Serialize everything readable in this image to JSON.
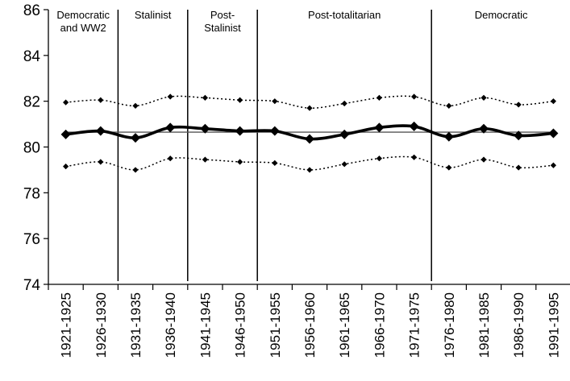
{
  "chart_data": {
    "type": "line",
    "title": "",
    "xlabel": "",
    "ylabel": "",
    "ylim": [
      74,
      86
    ],
    "y_ticks": [
      74,
      76,
      78,
      80,
      82,
      84,
      86
    ],
    "grid": false,
    "categories": [
      "1921-1925",
      "1926-1930",
      "1931-1935",
      "1936-1940",
      "1941-1945",
      "1946-1950",
      "1951-1955",
      "1956-1960",
      "1961-1965",
      "1966-1970",
      "1971-1975",
      "1976-1980",
      "1981-1985",
      "1986-1990",
      "1991-1995"
    ],
    "series": [
      {
        "style": "thick-solid-diamond",
        "values": [
          80.55,
          80.7,
          80.4,
          80.85,
          80.8,
          80.7,
          80.7,
          80.35,
          80.55,
          80.85,
          80.9,
          80.45,
          80.8,
          80.5,
          80.6
        ]
      },
      {
        "style": "dotted-upper-band",
        "values": [
          81.95,
          82.05,
          81.8,
          82.2,
          82.15,
          82.05,
          82.0,
          81.7,
          81.9,
          82.15,
          82.2,
          81.8,
          82.15,
          81.85,
          82.0
        ]
      },
      {
        "style": "dotted-lower-band",
        "values": [
          79.15,
          79.35,
          79.0,
          79.5,
          79.45,
          79.35,
          79.3,
          79.0,
          79.25,
          79.5,
          79.55,
          79.1,
          79.45,
          79.1,
          79.2
        ]
      }
    ],
    "reference_line": 80.65,
    "periods": [
      {
        "lines": [
          "Democratic",
          "and WW2"
        ],
        "start_index": 0,
        "end_index": 1
      },
      {
        "lines": [
          "Stalinist"
        ],
        "start_index": 2,
        "end_index": 3
      },
      {
        "lines": [
          "Post-",
          "Stalinist"
        ],
        "start_index": 4,
        "end_index": 5
      },
      {
        "lines": [
          "Post-totalitarian"
        ],
        "start_index": 6,
        "end_index": 10
      },
      {
        "lines": [
          "Democratic"
        ],
        "start_index": 11,
        "end_index": 14
      }
    ],
    "colors": {
      "series": "#000000",
      "reference": "#555555",
      "axis": "#000000"
    }
  }
}
